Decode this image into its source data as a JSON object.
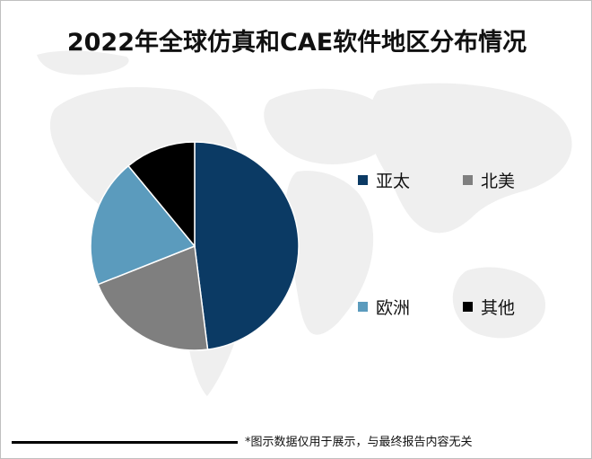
{
  "chart_data": {
    "type": "pie",
    "title": "2022年全球仿真和CAE软件地区分布情况",
    "slices": [
      {
        "label": "亚太",
        "value": 48,
        "color": "#0b3a64"
      },
      {
        "label": "北美",
        "value": 21,
        "color": "#7f7f7f"
      },
      {
        "label": "欧洲",
        "value": 20,
        "color": "#5b9bbd"
      },
      {
        "label": "其他",
        "value": 11,
        "color": "#000000"
      }
    ],
    "legend_position": "right",
    "start_angle_deg": 0,
    "direction": "clockwise"
  },
  "footer": {
    "note": "*图示数据仅用于展示，与最终报告内容无关"
  }
}
